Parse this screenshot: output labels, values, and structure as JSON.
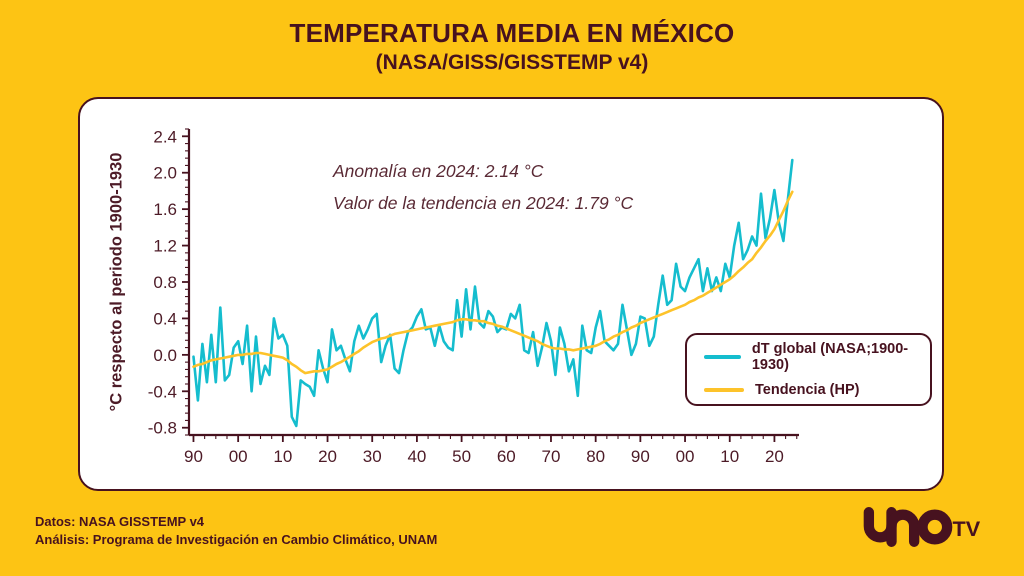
{
  "page": {
    "title": "TEMPERATURA MEDIA EN MÉXICO",
    "subtitle": "(NASA/GISS/GISSTEMP v4)"
  },
  "colors": {
    "background": "#FDC414",
    "card": "#FFFFFF",
    "ink": "#47121F",
    "axis_text": "#4D1B27",
    "annotation_text": "#5A2A35",
    "series_dt": "#15BDCE",
    "series_trend": "#FDC32A"
  },
  "footer": {
    "line1": "Datos: NASA GISSTEMP v4",
    "line2": "Análisis: Programa de Investigación en Cambio Climático, UNAM"
  },
  "logo": {
    "uno": "uno",
    "tv": "TV"
  },
  "chart_data": {
    "type": "line",
    "title": "TEMPERATURA MEDIA EN MÉXICO",
    "subtitle": "(NASA/GISS/GISSTEMP v4)",
    "ylabel": "°C respecto al periodo 1900-1930",
    "annotations": [
      "Anomalía en 2024: 2.14 °C",
      "Valor de la tendencia en 2024: 1.79 °C"
    ],
    "anomaly_2024": 2.14,
    "trend_2024": 1.79,
    "grid": false,
    "legend_position": "lower right",
    "x_start_year": 1890,
    "x_end_year": 2024,
    "xlim": [
      1889,
      2025.5
    ],
    "ylim": [
      -0.88,
      2.48
    ],
    "x_ticks": [
      1890,
      1900,
      1910,
      1920,
      1930,
      1940,
      1950,
      1960,
      1970,
      1980,
      1990,
      2000,
      2010,
      2020
    ],
    "x_tick_labels": [
      "90",
      "00",
      "10",
      "20",
      "30",
      "40",
      "50",
      "60",
      "70",
      "80",
      "90",
      "00",
      "10",
      "20"
    ],
    "x_minor_step_years": 2.5,
    "y_ticks": [
      -0.8,
      -0.4,
      0.0,
      0.4,
      0.8,
      1.2,
      1.6,
      2.0,
      2.4
    ],
    "y_minor_step": 0.08,
    "series": [
      {
        "name": "dT global (NASA;1900-1930)",
        "color": "#15BDCE",
        "values": [
          -0.02,
          -0.5,
          0.12,
          -0.3,
          0.22,
          -0.3,
          0.52,
          -0.28,
          -0.22,
          0.08,
          0.15,
          -0.1,
          0.32,
          -0.4,
          0.2,
          -0.32,
          -0.12,
          -0.22,
          0.4,
          0.18,
          0.22,
          0.1,
          -0.68,
          -0.78,
          -0.28,
          -0.32,
          -0.35,
          -0.45,
          0.05,
          -0.15,
          -0.3,
          0.28,
          0.05,
          0.1,
          -0.05,
          -0.18,
          0.15,
          0.32,
          0.18,
          0.28,
          0.4,
          0.45,
          -0.08,
          0.1,
          0.22,
          -0.15,
          -0.2,
          0.05,
          0.25,
          0.3,
          0.42,
          0.5,
          0.28,
          0.3,
          0.1,
          0.32,
          0.15,
          0.08,
          0.05,
          0.6,
          0.2,
          0.72,
          0.28,
          0.75,
          0.35,
          0.3,
          0.48,
          0.42,
          0.25,
          0.3,
          0.28,
          0.45,
          0.4,
          0.55,
          0.05,
          0.02,
          0.25,
          -0.12,
          0.08,
          0.35,
          0.15,
          -0.22,
          0.3,
          0.12,
          -0.18,
          -0.05,
          -0.45,
          0.32,
          0.05,
          0.02,
          0.3,
          0.48,
          0.15,
          0.1,
          0.05,
          0.12,
          0.55,
          0.28,
          0.0,
          0.12,
          0.42,
          0.4,
          0.1,
          0.2,
          0.55,
          0.87,
          0.55,
          0.6,
          1.0,
          0.75,
          0.7,
          0.85,
          0.95,
          1.05,
          0.7,
          0.95,
          0.7,
          0.85,
          0.7,
          1.0,
          0.85,
          1.2,
          1.45,
          1.05,
          1.15,
          1.3,
          1.2,
          1.77,
          1.28,
          1.5,
          1.81,
          1.45,
          1.25,
          1.7,
          2.14
        ]
      },
      {
        "name": "Tendencia (HP)",
        "color": "#FDC32A",
        "values": [
          -0.13,
          -0.11,
          -0.1,
          -0.08,
          -0.06,
          -0.05,
          -0.04,
          -0.03,
          -0.02,
          -0.01,
          0.0,
          0.0,
          0.01,
          0.01,
          0.02,
          0.02,
          0.01,
          0.0,
          -0.01,
          -0.02,
          -0.03,
          -0.06,
          -0.1,
          -0.13,
          -0.17,
          -0.2,
          -0.19,
          -0.18,
          -0.18,
          -0.17,
          -0.16,
          -0.13,
          -0.1,
          -0.08,
          -0.05,
          -0.02,
          0.01,
          0.04,
          0.08,
          0.11,
          0.14,
          0.16,
          0.18,
          0.19,
          0.21,
          0.23,
          0.24,
          0.25,
          0.26,
          0.27,
          0.28,
          0.29,
          0.3,
          0.31,
          0.32,
          0.33,
          0.34,
          0.35,
          0.36,
          0.38,
          0.39,
          0.39,
          0.38,
          0.38,
          0.37,
          0.37,
          0.35,
          0.34,
          0.32,
          0.31,
          0.29,
          0.27,
          0.25,
          0.23,
          0.21,
          0.19,
          0.17,
          0.15,
          0.12,
          0.1,
          0.08,
          0.07,
          0.07,
          0.06,
          0.06,
          0.05,
          0.06,
          0.07,
          0.08,
          0.09,
          0.1,
          0.12,
          0.15,
          0.17,
          0.2,
          0.22,
          0.25,
          0.27,
          0.3,
          0.32,
          0.35,
          0.37,
          0.39,
          0.41,
          0.43,
          0.45,
          0.47,
          0.49,
          0.51,
          0.53,
          0.55,
          0.58,
          0.6,
          0.63,
          0.65,
          0.68,
          0.71,
          0.74,
          0.77,
          0.8,
          0.83,
          0.87,
          0.92,
          0.96,
          1.01,
          1.05,
          1.12,
          1.18,
          1.25,
          1.31,
          1.38,
          1.48,
          1.58,
          1.69,
          1.79
        ]
      }
    ]
  }
}
